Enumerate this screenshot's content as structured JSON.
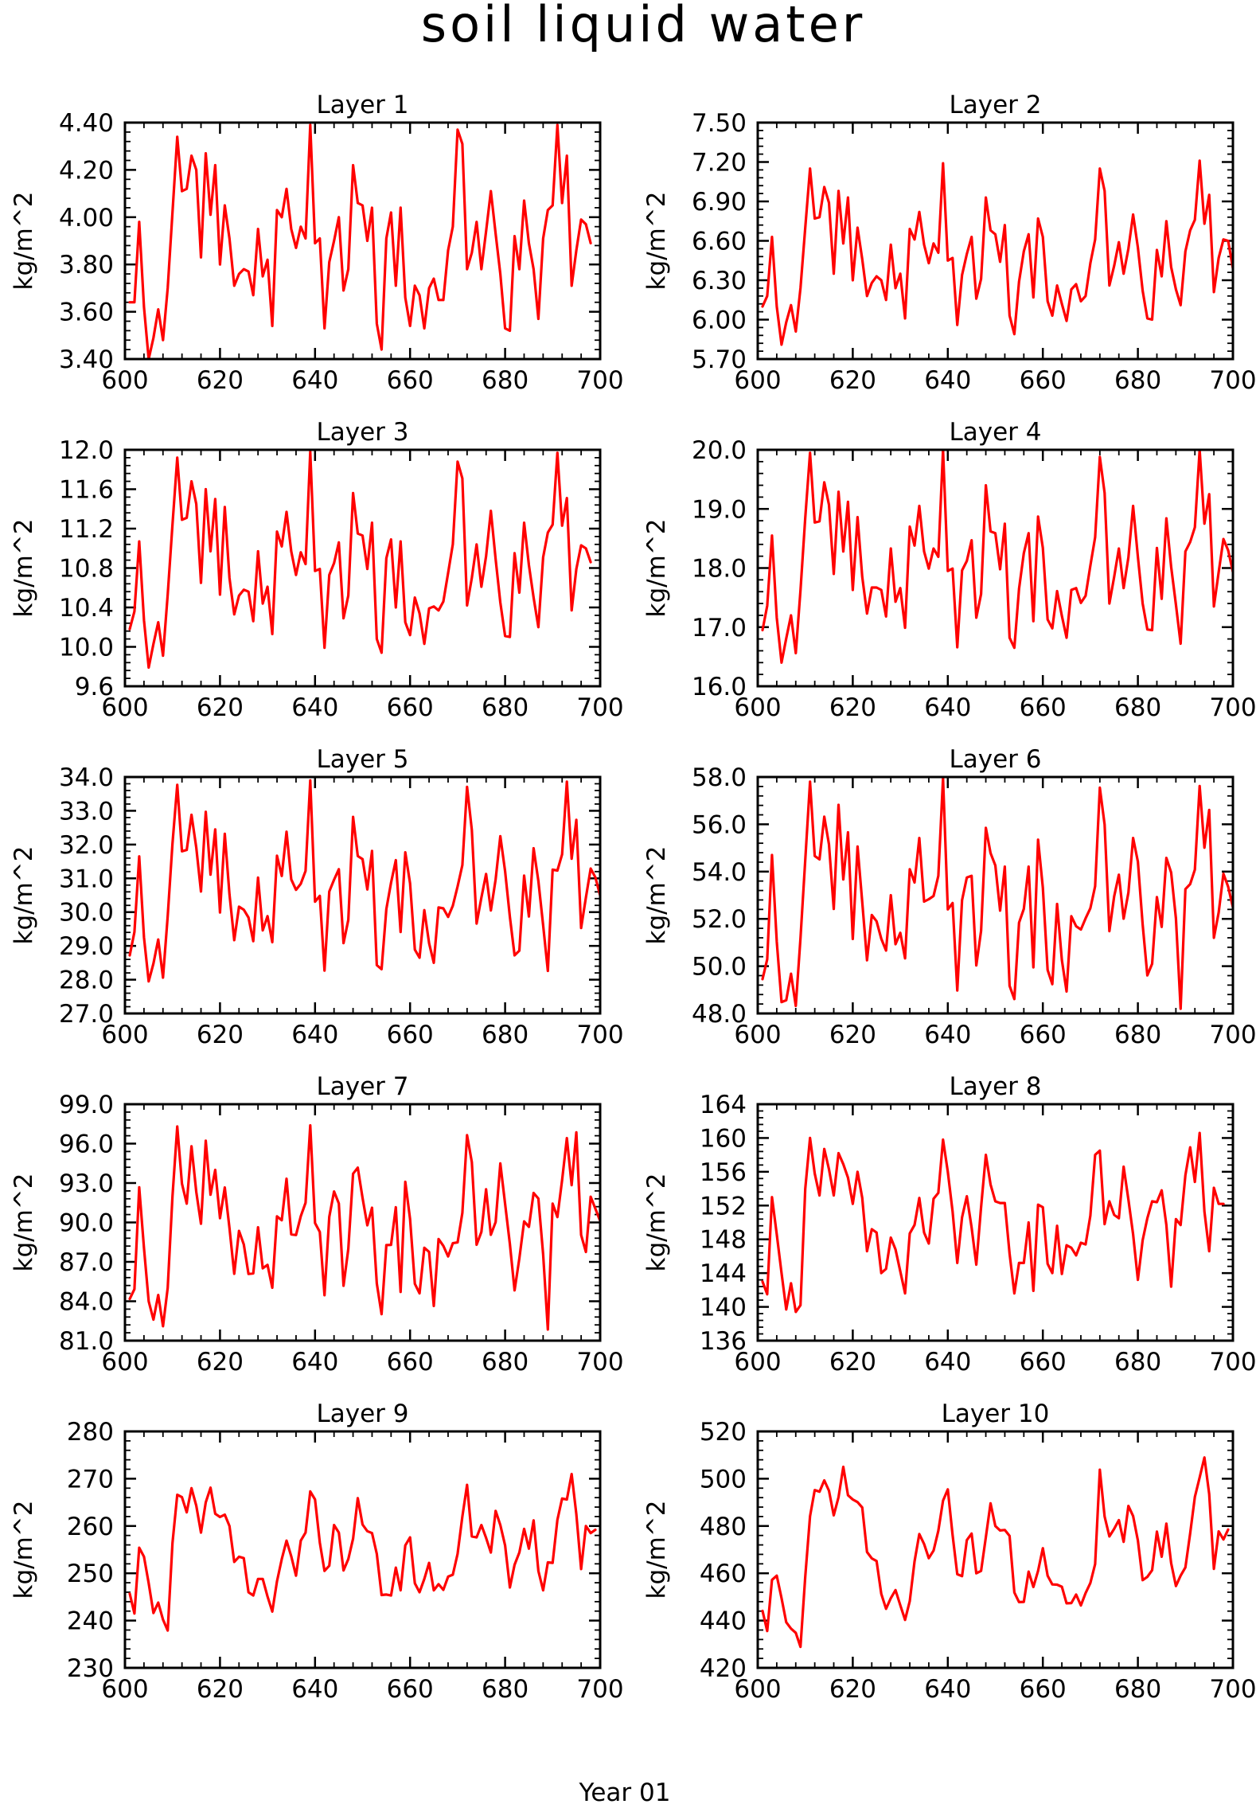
{
  "figure": {
    "title": "soil liquid water",
    "xlabel": "Year 01",
    "ylabel": "kg/m^2",
    "line_color": "#ff0000"
  },
  "chart_data": [
    {
      "type": "line",
      "title": "Layer 1",
      "ylabel": "kg/m^2",
      "xlim": [
        600,
        700
      ],
      "ylim": [
        3.4,
        4.4
      ],
      "xticks": [
        600,
        620,
        640,
        660,
        680,
        700
      ],
      "yticks": [
        "3.40",
        "3.60",
        "3.80",
        "4.00",
        "4.20",
        "4.40"
      ],
      "x_start": 601,
      "x_step": 1,
      "values": [
        3.64,
        3.64,
        3.98,
        3.62,
        3.4,
        3.49,
        3.61,
        3.48,
        3.7,
        4.02,
        4.34,
        4.11,
        4.12,
        4.26,
        4.2,
        3.83,
        4.27,
        4.01,
        4.22,
        3.8,
        4.05,
        3.91,
        3.71,
        3.76,
        3.78,
        3.77,
        3.67,
        3.95,
        3.75,
        3.82,
        3.54,
        4.03,
        4.0,
        4.12,
        3.95,
        3.87,
        3.96,
        3.91,
        4.39,
        3.89,
        3.91,
        3.53,
        3.81,
        3.9,
        4.0,
        3.69,
        3.78,
        4.22,
        4.06,
        4.05,
        3.9,
        4.04,
        3.55,
        3.44,
        3.91,
        4.02,
        3.71,
        4.04,
        3.66,
        3.54,
        3.71,
        3.67,
        3.53,
        3.7,
        3.74,
        3.65,
        3.65,
        3.86,
        3.96,
        4.37,
        4.31,
        3.78,
        3.85,
        3.98,
        3.78,
        3.94,
        4.11,
        3.93,
        3.76,
        3.53,
        3.52,
        3.92,
        3.78,
        4.07,
        3.89,
        3.78,
        3.57,
        3.91,
        4.03,
        4.05,
        4.39,
        4.06,
        4.26,
        3.71,
        3.86,
        3.99,
        3.97,
        3.89
      ]
    },
    {
      "type": "line",
      "title": "Layer 2",
      "ylabel": "kg/m^2",
      "xlim": [
        600,
        700
      ],
      "ylim": [
        5.7,
        7.5
      ],
      "xticks": [
        600,
        620,
        640,
        660,
        680,
        700
      ],
      "yticks": [
        "5.70",
        "6.00",
        "6.30",
        "6.60",
        "6.90",
        "7.20",
        "7.50"
      ],
      "x_start": 601,
      "x_step": 1,
      "values": [
        6.1,
        6.18,
        6.63,
        6.1,
        5.81,
        5.98,
        6.11,
        5.91,
        6.24,
        6.7,
        7.15,
        6.77,
        6.78,
        7.01,
        6.89,
        6.35,
        6.98,
        6.58,
        6.93,
        6.3,
        6.7,
        6.46,
        6.18,
        6.28,
        6.33,
        6.3,
        6.15,
        6.57,
        6.24,
        6.35,
        6.01,
        6.69,
        6.61,
        6.82,
        6.57,
        6.43,
        6.58,
        6.51,
        7.19,
        6.45,
        6.47,
        5.96,
        6.34,
        6.5,
        6.63,
        6.16,
        6.31,
        6.93,
        6.68,
        6.65,
        6.44,
        6.72,
        6.03,
        5.89,
        6.29,
        6.52,
        6.65,
        6.17,
        6.77,
        6.63,
        6.14,
        6.03,
        6.26,
        6.12,
        5.99,
        6.23,
        6.27,
        6.14,
        6.18,
        6.43,
        6.61,
        7.15,
        6.98,
        6.26,
        6.41,
        6.59,
        6.35,
        6.54,
        6.8,
        6.55,
        6.22,
        6.01,
        6.0,
        6.53,
        6.33,
        6.75,
        6.4,
        6.23,
        6.11,
        6.52,
        6.68,
        6.76,
        7.21,
        6.73,
        6.95,
        6.21,
        6.47,
        6.61,
        6.6,
        6.39
      ]
    },
    {
      "type": "line",
      "title": "Layer 3",
      "ylabel": "kg/m^2",
      "xlim": [
        600,
        700
      ],
      "ylim": [
        9.6,
        12.0
      ],
      "xticks": [
        600,
        620,
        640,
        660,
        680,
        700
      ],
      "yticks": [
        "9.6",
        "10.0",
        "10.4",
        "10.8",
        "11.2",
        "11.6",
        "12.0"
      ],
      "x_start": 601,
      "x_step": 1,
      "values": [
        10.18,
        10.36,
        11.07,
        10.27,
        9.79,
        10.03,
        10.25,
        9.91,
        10.53,
        11.24,
        11.92,
        11.29,
        11.31,
        11.68,
        11.45,
        10.65,
        11.6,
        10.97,
        11.5,
        10.53,
        11.42,
        10.7,
        10.33,
        10.52,
        10.58,
        10.56,
        10.26,
        10.97,
        10.44,
        10.61,
        10.13,
        11.17,
        11.02,
        11.37,
        10.97,
        10.73,
        10.96,
        10.84,
        11.98,
        10.77,
        10.79,
        9.99,
        10.73,
        10.85,
        11.06,
        10.29,
        10.52,
        11.56,
        11.15,
        11.13,
        10.79,
        11.26,
        10.08,
        9.94,
        10.9,
        11.09,
        10.4,
        11.07,
        10.25,
        10.12,
        10.5,
        10.34,
        10.03,
        10.39,
        10.41,
        10.37,
        10.46,
        10.75,
        11.04,
        11.88,
        11.71,
        10.42,
        10.7,
        11.04,
        10.61,
        10.92,
        11.38,
        10.89,
        10.45,
        10.11,
        10.1,
        10.95,
        10.55,
        11.26,
        10.83,
        10.5,
        10.2,
        10.91,
        11.16,
        11.24,
        11.97,
        11.23,
        11.51,
        10.37,
        10.79,
        11.03,
        11.0,
        10.86
      ]
    },
    {
      "type": "line",
      "title": "Layer 4",
      "ylabel": "kg/m^2",
      "xlim": [
        600,
        700
      ],
      "ylim": [
        16.0,
        20.0
      ],
      "xticks": [
        600,
        620,
        640,
        660,
        680,
        700
      ],
      "yticks": [
        "16.0",
        "17.0",
        "18.0",
        "19.0",
        "20.0"
      ],
      "x_start": 601,
      "x_step": 1,
      "values": [
        16.95,
        17.36,
        18.55,
        17.16,
        16.4,
        16.81,
        17.2,
        16.56,
        17.62,
        18.85,
        19.95,
        18.77,
        18.79,
        19.45,
        19.07,
        17.9,
        19.29,
        18.28,
        19.12,
        17.63,
        18.86,
        17.85,
        17.23,
        17.67,
        17.67,
        17.63,
        17.18,
        18.33,
        17.43,
        17.66,
        16.99,
        18.7,
        18.38,
        19.05,
        18.28,
        17.99,
        18.33,
        18.19,
        20.0,
        17.95,
        17.99,
        16.66,
        17.96,
        18.12,
        18.47,
        17.16,
        17.56,
        19.4,
        18.62,
        18.59,
        17.98,
        18.75,
        16.82,
        16.65,
        17.65,
        18.25,
        18.59,
        17.1,
        18.87,
        18.34,
        17.13,
        16.98,
        17.61,
        17.19,
        16.82,
        17.63,
        17.66,
        17.41,
        17.53,
        18.04,
        18.52,
        19.88,
        19.27,
        17.4,
        17.85,
        18.33,
        17.66,
        18.18,
        19.05,
        18.19,
        17.4,
        16.96,
        16.95,
        18.34,
        17.48,
        18.84,
        18.02,
        17.38,
        16.72,
        18.28,
        18.44,
        18.69,
        20.0,
        18.75,
        19.25,
        17.35,
        17.93,
        18.49,
        18.3,
        17.93
      ]
    },
    {
      "type": "line",
      "title": "Layer 5",
      "ylabel": "kg/m^2",
      "xlim": [
        600,
        700
      ],
      "ylim": [
        27.0,
        34.0
      ],
      "xticks": [
        600,
        620,
        640,
        660,
        680,
        700
      ],
      "yticks": [
        "27.0",
        "28.0",
        "29.0",
        "30.0",
        "31.0",
        "32.0",
        "33.0",
        "34.0"
      ],
      "x_start": 601,
      "x_step": 1,
      "values": [
        28.72,
        29.41,
        31.65,
        29.25,
        27.95,
        28.48,
        29.19,
        28.06,
        29.88,
        32.03,
        33.77,
        31.8,
        31.84,
        32.88,
        31.91,
        30.61,
        32.97,
        31.11,
        32.45,
        29.99,
        32.32,
        30.53,
        29.17,
        30.16,
        30.07,
        29.84,
        29.14,
        31.02,
        29.46,
        29.88,
        29.11,
        31.67,
        31.07,
        32.38,
        30.97,
        30.66,
        30.84,
        31.22,
        33.9,
        30.31,
        30.48,
        28.27,
        30.61,
        30.96,
        31.27,
        29.08,
        29.77,
        32.82,
        31.66,
        31.57,
        30.67,
        31.81,
        28.43,
        28.31,
        30.09,
        30.87,
        31.54,
        29.41,
        31.77,
        30.85,
        28.89,
        28.65,
        30.06,
        29.08,
        28.5,
        30.14,
        30.11,
        29.86,
        30.19,
        30.76,
        31.39,
        33.71,
        32.43,
        29.66,
        30.43,
        31.13,
        30.05,
        30.97,
        32.25,
        31.21,
        29.86,
        28.72,
        28.86,
        31.08,
        29.87,
        31.89,
        30.92,
        29.61,
        28.26,
        31.26,
        31.23,
        31.71,
        33.86,
        31.58,
        32.73,
        29.53,
        30.43,
        31.29,
        31.03,
        30.49
      ]
    },
    {
      "type": "line",
      "title": "Layer 6",
      "ylabel": "kg/m^2",
      "xlim": [
        600,
        700
      ],
      "ylim": [
        48.0,
        58.0
      ],
      "xticks": [
        600,
        620,
        640,
        660,
        680,
        700
      ],
      "yticks": [
        "48.0",
        "50.0",
        "52.0",
        "54.0",
        "56.0",
        "58.0"
      ],
      "x_start": 601,
      "x_step": 1,
      "values": [
        49.45,
        50.29,
        54.7,
        51.04,
        48.48,
        48.56,
        49.68,
        48.32,
        51.18,
        54.49,
        57.8,
        54.66,
        54.52,
        56.32,
        55.15,
        52.42,
        56.82,
        53.67,
        55.66,
        51.15,
        55.06,
        52.71,
        50.25,
        52.16,
        51.9,
        51.16,
        50.66,
        53.0,
        50.93,
        51.41,
        50.33,
        54.1,
        53.54,
        55.42,
        52.73,
        52.83,
        52.97,
        53.82,
        57.95,
        52.4,
        52.67,
        48.97,
        52.79,
        53.75,
        53.82,
        50.03,
        51.49,
        55.85,
        54.78,
        54.26,
        52.35,
        54.21,
        49.17,
        48.61,
        51.84,
        52.42,
        54.21,
        49.95,
        55.35,
        53.32,
        49.84,
        49.24,
        52.63,
        50.26,
        48.93,
        52.11,
        51.69,
        51.55,
        52.02,
        52.45,
        53.38,
        57.55,
        55.99,
        51.48,
        52.95,
        53.87,
        52.01,
        53.11,
        55.42,
        54.42,
        51.76,
        49.61,
        50.1,
        52.92,
        51.66,
        54.58,
        53.96,
        52.02,
        48.2,
        53.26,
        53.47,
        54.08,
        57.62,
        55.01,
        56.61,
        51.2,
        52.27,
        53.91,
        53.36,
        52.48
      ]
    },
    {
      "type": "line",
      "title": "Layer 7",
      "ylabel": "kg/m^2",
      "xlim": [
        600,
        700
      ],
      "ylim": [
        81.0,
        99.0
      ],
      "xticks": [
        600,
        620,
        640,
        660,
        680,
        700
      ],
      "yticks": [
        "81.0",
        "84.0",
        "87.0",
        "90.0",
        "93.0",
        "96.0",
        "99.0"
      ],
      "x_start": 601,
      "x_step": 1,
      "values": [
        84.18,
        84.92,
        92.67,
        88.04,
        84.0,
        82.6,
        84.48,
        82.1,
        85.02,
        91.99,
        97.3,
        92.96,
        91.43,
        95.8,
        92.32,
        89.9,
        96.22,
        92.11,
        94.0,
        90.33,
        92.66,
        89.58,
        86.09,
        89.36,
        88.33,
        86.08,
        86.12,
        89.63,
        86.51,
        86.77,
        85.03,
        90.46,
        90.17,
        93.33,
        89.09,
        89.04,
        90.47,
        91.5,
        97.39,
        89.96,
        89.27,
        84.46,
        90.43,
        92.36,
        91.44,
        85.18,
        87.98,
        93.71,
        94.17,
        91.86,
        89.78,
        91.12,
        85.36,
        83.02,
        88.27,
        88.29,
        91.16,
        84.71,
        93.09,
        90.26,
        85.33,
        84.6,
        88.07,
        87.75,
        83.64,
        88.74,
        88.22,
        87.41,
        88.42,
        88.48,
        90.73,
        96.64,
        94.59,
        88.3,
        89.28,
        92.52,
        89.06,
        90.03,
        94.49,
        91.41,
        88.36,
        84.83,
        87.26,
        90.08,
        89.66,
        92.24,
        91.82,
        87.56,
        81.85,
        91.43,
        90.41,
        93.22,
        96.42,
        92.84,
        96.86,
        89.05,
        87.75,
        91.96,
        91.05,
        90.11
      ]
    },
    {
      "type": "line",
      "title": "Layer 8",
      "ylabel": "kg/m^2",
      "xlim": [
        600,
        700
      ],
      "ylim": [
        136,
        164
      ],
      "xticks": [
        600,
        620,
        640,
        660,
        680,
        700
      ],
      "yticks": [
        "136",
        "140",
        "144",
        "148",
        "152",
        "156",
        "160",
        "164"
      ],
      "x_start": 601,
      "x_step": 1,
      "values": [
        143.0,
        141.5,
        153.0,
        148.6,
        144.0,
        139.7,
        142.8,
        139.4,
        140.2,
        154.0,
        160.0,
        155.8,
        153.2,
        158.7,
        156.3,
        153.2,
        158.2,
        156.9,
        155.3,
        152.2,
        156.0,
        152.9,
        146.6,
        149.2,
        148.8,
        144.0,
        144.5,
        148.2,
        146.8,
        144.2,
        141.6,
        148.7,
        149.7,
        152.9,
        148.8,
        147.5,
        152.8,
        153.5,
        159.8,
        156.0,
        151.3,
        145.2,
        150.6,
        153.1,
        149.4,
        145.0,
        151.8,
        158.0,
        154.5,
        152.5,
        152.3,
        152.3,
        146.3,
        141.6,
        145.2,
        145.2,
        150.0,
        141.9,
        152.1,
        151.8,
        145.1,
        144.0,
        149.6,
        143.9,
        147.3,
        147.0,
        146.1,
        147.6,
        147.4,
        150.8,
        158.0,
        158.5,
        149.8,
        152.5,
        150.9,
        150.5,
        156.6,
        152.7,
        148.6,
        143.2,
        147.9,
        150.5,
        152.5,
        152.4,
        153.8,
        149.7,
        142.4,
        150.4,
        149.7,
        155.6,
        158.9,
        154.8,
        160.6,
        151.3,
        146.6,
        154.1,
        152.2,
        152.2
      ]
    },
    {
      "type": "line",
      "title": "Layer 9",
      "ylabel": "kg/m^2",
      "xlim": [
        600,
        700
      ],
      "ylim": [
        230,
        280
      ],
      "xticks": [
        600,
        620,
        640,
        660,
        680,
        700
      ],
      "yticks": [
        "230",
        "240",
        "250",
        "260",
        "270",
        "280"
      ],
      "x_start": 601,
      "x_step": 1,
      "values": [
        245.7,
        241.5,
        255.4,
        253.5,
        247.9,
        241.6,
        243.8,
        240.2,
        237.9,
        256.4,
        266.6,
        266.1,
        262.9,
        268.0,
        264.3,
        258.6,
        265.0,
        268.1,
        262.6,
        261.9,
        262.4,
        260.0,
        252.4,
        253.5,
        253.2,
        246.0,
        245.3,
        248.8,
        248.8,
        245.1,
        241.9,
        248.3,
        253.0,
        256.9,
        253.6,
        249.5,
        256.9,
        258.6,
        267.3,
        265.6,
        256.5,
        250.5,
        251.6,
        260.2,
        258.6,
        250.6,
        253.0,
        257.3,
        265.9,
        260.3,
        258.9,
        258.5,
        254.1,
        245.4,
        245.5,
        245.3,
        251.2,
        246.4,
        255.9,
        257.6,
        247.9,
        246.0,
        248.8,
        252.2,
        246.4,
        247.7,
        246.5,
        249.3,
        249.7,
        254.1,
        262.0,
        268.7,
        257.8,
        257.6,
        260.2,
        257.5,
        254.4,
        263.2,
        260.2,
        255.9,
        247.0,
        251.8,
        254.4,
        259.4,
        255.2,
        261.2,
        250.5,
        246.4,
        252.3,
        252.2,
        261.3,
        265.8,
        265.6,
        271.0,
        262.5,
        250.9,
        260.0,
        258.5,
        259.2
      ]
    },
    {
      "type": "line",
      "title": "Layer 10",
      "ylabel": "kg/m^2",
      "xlim": [
        600,
        700
      ],
      "ylim": [
        420,
        520
      ],
      "xticks": [
        600,
        620,
        640,
        660,
        680,
        700
      ],
      "yticks": [
        "420",
        "440",
        "460",
        "480",
        "500",
        "520"
      ],
      "x_start": 601,
      "x_step": 1,
      "values": [
        444.1,
        435.6,
        457.2,
        459.0,
        449.5,
        439.3,
        436.6,
        434.8,
        428.9,
        458.6,
        484.1,
        495.2,
        494.5,
        499.3,
        494.9,
        484.5,
        492.2,
        505.0,
        493.0,
        491.2,
        490.1,
        487.8,
        469.0,
        466.3,
        465.2,
        451.3,
        445.0,
        449.5,
        452.9,
        446.5,
        440.3,
        448.2,
        465.0,
        476.6,
        472.4,
        466.4,
        469.6,
        478.0,
        490.7,
        495.5,
        476.2,
        459.6,
        458.8,
        474.0,
        476.8,
        460.0,
        461.0,
        475.3,
        489.6,
        480.0,
        478.1,
        478.3,
        475.8,
        451.9,
        447.8,
        447.9,
        460.7,
        454.2,
        461.0,
        470.6,
        459.0,
        455.3,
        455.2,
        454.3,
        447.3,
        447.4,
        451.0,
        446.4,
        451.6,
        455.9,
        463.9,
        503.8,
        484.0,
        475.6,
        478.8,
        482.5,
        473.3,
        488.5,
        484.2,
        473.9,
        457.1,
        458.5,
        461.3,
        477.6,
        467.0,
        481.0,
        464.3,
        454.6,
        459.0,
        462.5,
        476.9,
        492.3,
        500.5,
        509.0,
        493.5,
        461.9,
        477.7,
        474.3,
        478.5
      ]
    }
  ]
}
